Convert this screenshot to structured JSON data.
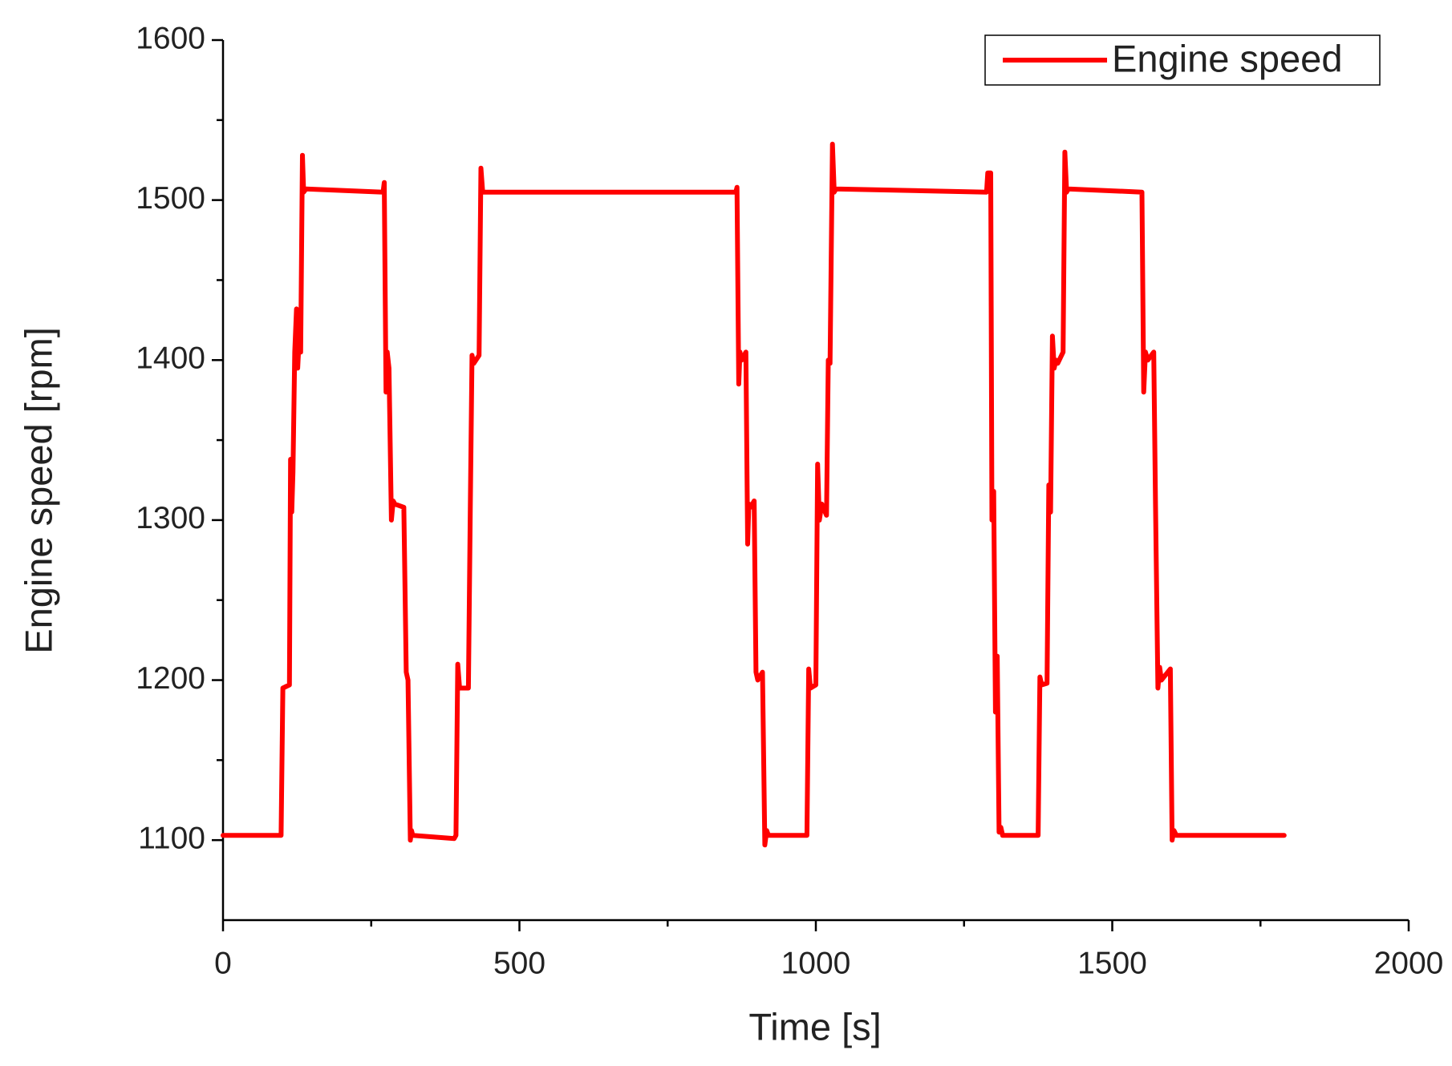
{
  "chart_data": {
    "type": "line",
    "xlabel": "Time [s]",
    "ylabel": "Engine speed [rpm]",
    "xlim": [
      0,
      2000
    ],
    "ylim": [
      1050,
      1600
    ],
    "xticks": [
      0,
      500,
      1000,
      1500,
      2000
    ],
    "yticks": [
      1100,
      1200,
      1300,
      1400,
      1500,
      1600
    ],
    "xminorticks": [
      250,
      750,
      1250,
      1750
    ],
    "yminorticks": [
      1150,
      1250,
      1350,
      1450,
      1550
    ],
    "legend": "upper right",
    "x": [
      0,
      98,
      101,
      112,
      114,
      116,
      118,
      121,
      124,
      126,
      128,
      131,
      134,
      136,
      140,
      270,
      272,
      275,
      277,
      280,
      284,
      287,
      290,
      305,
      309,
      312,
      316,
      318,
      320,
      390,
      393,
      396,
      399,
      414,
      417,
      420,
      423,
      432,
      435,
      438,
      865,
      867,
      870,
      872,
      875,
      882,
      885,
      887,
      890,
      896,
      899,
      902,
      910,
      914,
      917,
      920,
      985,
      988,
      991,
      1000,
      1003,
      1006,
      1010,
      1018,
      1021,
      1024,
      1028,
      1031,
      1034,
      1288,
      1290,
      1295,
      1297,
      1300,
      1303,
      1306,
      1309,
      1312,
      1315,
      1375,
      1378,
      1381,
      1390,
      1393,
      1396,
      1399,
      1402,
      1405,
      1408,
      1417,
      1420,
      1423,
      1426,
      1550,
      1553,
      1556,
      1560,
      1570,
      1573,
      1577,
      1580,
      1583,
      1598,
      1601,
      1604,
      1608,
      1790
    ],
    "series": [
      {
        "name": "Engine speed",
        "color": "#ff0000",
        "values": [
          1103,
          1103,
          1195,
          1197,
          1338,
          1305,
          1330,
          1405,
          1432,
          1395,
          1410,
          1405,
          1528,
          1505,
          1507,
          1505,
          1511,
          1380,
          1405,
          1395,
          1300,
          1312,
          1310,
          1308,
          1205,
          1200,
          1100,
          1106,
          1103,
          1101,
          1103,
          1210,
          1195,
          1195,
          1305,
          1403,
          1398,
          1403,
          1520,
          1505,
          1505,
          1508,
          1385,
          1405,
          1400,
          1405,
          1285,
          1310,
          1308,
          1312,
          1205,
          1200,
          1205,
          1097,
          1106,
          1103,
          1103,
          1207,
          1195,
          1197,
          1335,
          1300,
          1310,
          1303,
          1400,
          1398,
          1535,
          1505,
          1507,
          1505,
          1517,
          1517,
          1300,
          1318,
          1180,
          1215,
          1105,
          1108,
          1103,
          1103,
          1202,
          1197,
          1198,
          1322,
          1305,
          1415,
          1395,
          1400,
          1398,
          1405,
          1530,
          1505,
          1507,
          1505,
          1380,
          1405,
          1400,
          1405,
          1310,
          1195,
          1208,
          1200,
          1207,
          1100,
          1106,
          1103,
          1103
        ]
      }
    ]
  }
}
